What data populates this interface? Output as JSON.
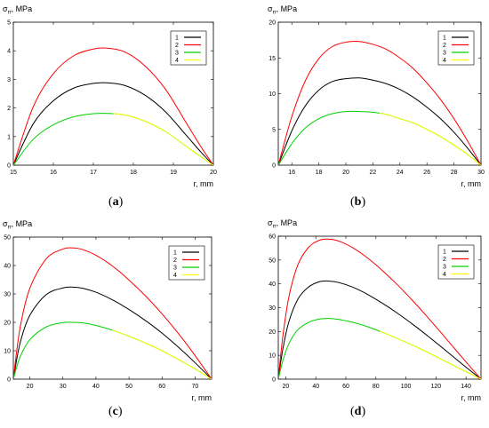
{
  "chart_data": [
    {
      "type": "line",
      "panel_label": "(a)",
      "ylabel": "σ_rr, MPa",
      "xlabel": "r, mm",
      "xlim": [
        15,
        20
      ],
      "ylim": [
        0,
        5
      ],
      "xticks": [
        15,
        16,
        17,
        18,
        19,
        20
      ],
      "yticks": [
        0,
        1,
        2,
        3,
        4,
        5
      ],
      "legend_position": "top-right",
      "series": [
        {
          "name": "1",
          "color": "#000000",
          "x": [
            15,
            15.5,
            16,
            16.5,
            17,
            17.35,
            17.8,
            18.3,
            18.8,
            19.3,
            19.7,
            20
          ],
          "y": [
            0,
            1.45,
            2.25,
            2.69,
            2.86,
            2.88,
            2.78,
            2.44,
            1.87,
            1.08,
            0.44,
            0
          ]
        },
        {
          "name": "2",
          "color": "#ff0000",
          "x": [
            15,
            15.5,
            16,
            16.5,
            17,
            17.35,
            17.8,
            18.3,
            18.8,
            19.3,
            19.7,
            20
          ],
          "y": [
            0,
            2.05,
            3.2,
            3.82,
            4.06,
            4.09,
            3.95,
            3.46,
            2.66,
            1.53,
            0.62,
            0
          ]
        },
        {
          "name": "3",
          "color": "#00d000",
          "x": [
            15,
            15.5,
            16,
            16.5,
            17,
            17.35,
            17.8,
            18.3,
            18.8,
            19.3,
            19.7,
            20
          ],
          "y": [
            0,
            0.91,
            1.41,
            1.69,
            1.8,
            1.81,
            1.75,
            1.53,
            1.18,
            0.68,
            0.28,
            0
          ]
        },
        {
          "name": "4",
          "color": "#ffff00",
          "x": [
            15,
            15.5,
            16,
            16.5,
            17,
            17.35,
            17.8,
            18.3,
            18.8,
            19.3,
            19.7,
            20
          ],
          "y": [
            0,
            0.91,
            1.41,
            1.69,
            1.8,
            1.81,
            1.75,
            1.53,
            1.18,
            0.68,
            0.28,
            0
          ]
        }
      ]
    },
    {
      "type": "line",
      "panel_label": "(b)",
      "ylabel": "σ_rr, MPa",
      "xlabel": "r, mm",
      "xlim": [
        15,
        30
      ],
      "ylim": [
        0,
        20
      ],
      "xticks": [
        16,
        18,
        20,
        22,
        24,
        26,
        28,
        30
      ],
      "yticks": [
        0,
        5,
        10,
        15,
        20
      ],
      "legend_position": "top-right",
      "series": [
        {
          "name": "1",
          "color": "#000000",
          "x": [
            15,
            16,
            17,
            18,
            19,
            20,
            21,
            22,
            23,
            24,
            25,
            26,
            27,
            28,
            29,
            30
          ],
          "y": [
            0,
            4.8,
            8.3,
            10.5,
            11.7,
            12.1,
            12.2,
            11.9,
            11.4,
            10.6,
            9.5,
            8.1,
            6.5,
            4.6,
            2.4,
            0
          ]
        },
        {
          "name": "2",
          "color": "#ff0000",
          "x": [
            15,
            16,
            17,
            18,
            19,
            20,
            21,
            22,
            23,
            24,
            25,
            26,
            27,
            28,
            29,
            30
          ],
          "y": [
            0,
            6.8,
            11.8,
            14.9,
            16.6,
            17.2,
            17.3,
            16.9,
            16.2,
            15.0,
            13.5,
            11.5,
            9.2,
            6.5,
            3.4,
            0
          ]
        },
        {
          "name": "3",
          "color": "#00d000",
          "x": [
            15,
            16,
            17,
            18,
            19,
            20,
            21,
            22,
            23,
            24,
            25,
            26,
            27,
            28,
            29,
            30
          ],
          "y": [
            0,
            3.0,
            5.2,
            6.5,
            7.2,
            7.5,
            7.5,
            7.4,
            7.1,
            6.5,
            5.9,
            5.0,
            4.0,
            2.8,
            1.5,
            0
          ]
        },
        {
          "name": "4",
          "color": "#ffff00",
          "x": [
            15,
            16,
            17,
            18,
            19,
            20,
            21,
            22,
            23,
            24,
            25,
            26,
            27,
            28,
            29,
            30
          ],
          "y": [
            0,
            3.0,
            5.2,
            6.5,
            7.2,
            7.5,
            7.5,
            7.4,
            7.1,
            6.5,
            5.9,
            5.0,
            4.0,
            2.8,
            1.5,
            0
          ]
        }
      ]
    },
    {
      "type": "line",
      "panel_label": "(c)",
      "ylabel": "σ_rr, MPa",
      "xlabel": "r, mm",
      "xlim": [
        15,
        75
      ],
      "ylim": [
        0,
        50
      ],
      "xticks": [
        20,
        30,
        40,
        50,
        60,
        70
      ],
      "yticks": [
        0,
        10,
        20,
        30,
        40,
        50
      ],
      "legend_position": "top-right",
      "series": [
        {
          "name": "1",
          "color": "#000000",
          "x": [
            15,
            17,
            20,
            25,
            30,
            33,
            36,
            40,
            45,
            50,
            55,
            60,
            65,
            70,
            75
          ],
          "y": [
            0,
            12.5,
            22.5,
            29.8,
            32.1,
            32.4,
            32.0,
            30.6,
            27.9,
            24.5,
            20.6,
            16.2,
            11.2,
            5.8,
            0
          ]
        },
        {
          "name": "2",
          "color": "#ff0000",
          "x": [
            15,
            17,
            20,
            25,
            30,
            33,
            36,
            40,
            45,
            50,
            55,
            60,
            65,
            70,
            75
          ],
          "y": [
            0,
            17.8,
            32.0,
            42.4,
            45.8,
            46.2,
            45.6,
            43.6,
            39.8,
            34.9,
            29.3,
            23.0,
            16.0,
            8.3,
            0
          ]
        },
        {
          "name": "3",
          "color": "#00d000",
          "x": [
            15,
            17,
            20,
            25,
            30,
            33,
            36,
            40,
            45,
            50,
            55,
            60,
            65,
            70,
            75
          ],
          "y": [
            0,
            7.7,
            13.9,
            18.4,
            19.9,
            20.0,
            19.8,
            18.9,
            17.2,
            15.1,
            12.7,
            10.0,
            6.9,
            3.6,
            0
          ]
        },
        {
          "name": "4",
          "color": "#ffff00",
          "x": [
            15,
            17,
            20,
            25,
            30,
            33,
            36,
            40,
            45,
            50,
            55,
            60,
            65,
            70,
            75
          ],
          "y": [
            0,
            7.7,
            13.9,
            18.4,
            19.9,
            20.0,
            19.8,
            18.9,
            17.2,
            15.1,
            12.7,
            10.0,
            6.9,
            3.6,
            0
          ]
        }
      ]
    },
    {
      "type": "line",
      "panel_label": "(d)",
      "ylabel": "σ_rr, MPa",
      "xlabel": "r, mm",
      "xlim": [
        15,
        150
      ],
      "ylim": [
        0,
        60
      ],
      "xticks": [
        20,
        40,
        60,
        80,
        100,
        120,
        140
      ],
      "yticks": [
        0,
        10,
        20,
        30,
        40,
        50,
        60
      ],
      "legend_position": "top-right",
      "series": [
        {
          "name": "1",
          "color": "#000000",
          "x": [
            15,
            18,
            22,
            28,
            35,
            42,
            48,
            55,
            65,
            75,
            85,
            95,
            105,
            115,
            125,
            135,
            145,
            150
          ],
          "y": [
            0,
            12.5,
            24.0,
            33.5,
            38.6,
            40.8,
            41.2,
            40.6,
            38.5,
            35.4,
            31.6,
            27.4,
            22.8,
            17.9,
            12.8,
            7.6,
            2.5,
            0
          ]
        },
        {
          "name": "2",
          "color": "#ff0000",
          "x": [
            15,
            18,
            22,
            28,
            35,
            42,
            48,
            55,
            65,
            75,
            85,
            95,
            105,
            115,
            125,
            135,
            145,
            150
          ],
          "y": [
            0,
            17.8,
            34.3,
            47.9,
            55.2,
            58.2,
            58.8,
            58.0,
            55.0,
            50.6,
            45.2,
            39.2,
            32.6,
            25.6,
            18.3,
            10.9,
            3.6,
            0
          ]
        },
        {
          "name": "3",
          "color": "#00d000",
          "x": [
            15,
            18,
            22,
            28,
            35,
            42,
            48,
            55,
            65,
            75,
            85,
            95,
            105,
            115,
            125,
            135,
            145,
            150
          ],
          "y": [
            0,
            7.7,
            14.8,
            20.7,
            23.8,
            25.2,
            25.5,
            25.1,
            23.8,
            21.9,
            19.5,
            16.9,
            14.1,
            11.1,
            7.9,
            4.7,
            1.6,
            0
          ]
        },
        {
          "name": "4",
          "color": "#ffff00",
          "x": [
            15,
            18,
            22,
            28,
            35,
            42,
            48,
            55,
            65,
            75,
            85,
            95,
            105,
            115,
            125,
            135,
            145,
            150
          ],
          "y": [
            0,
            7.7,
            14.8,
            20.7,
            23.8,
            25.2,
            25.5,
            25.1,
            23.8,
            21.9,
            19.5,
            16.9,
            14.1,
            11.1,
            7.9,
            4.7,
            1.6,
            0
          ]
        }
      ]
    }
  ]
}
